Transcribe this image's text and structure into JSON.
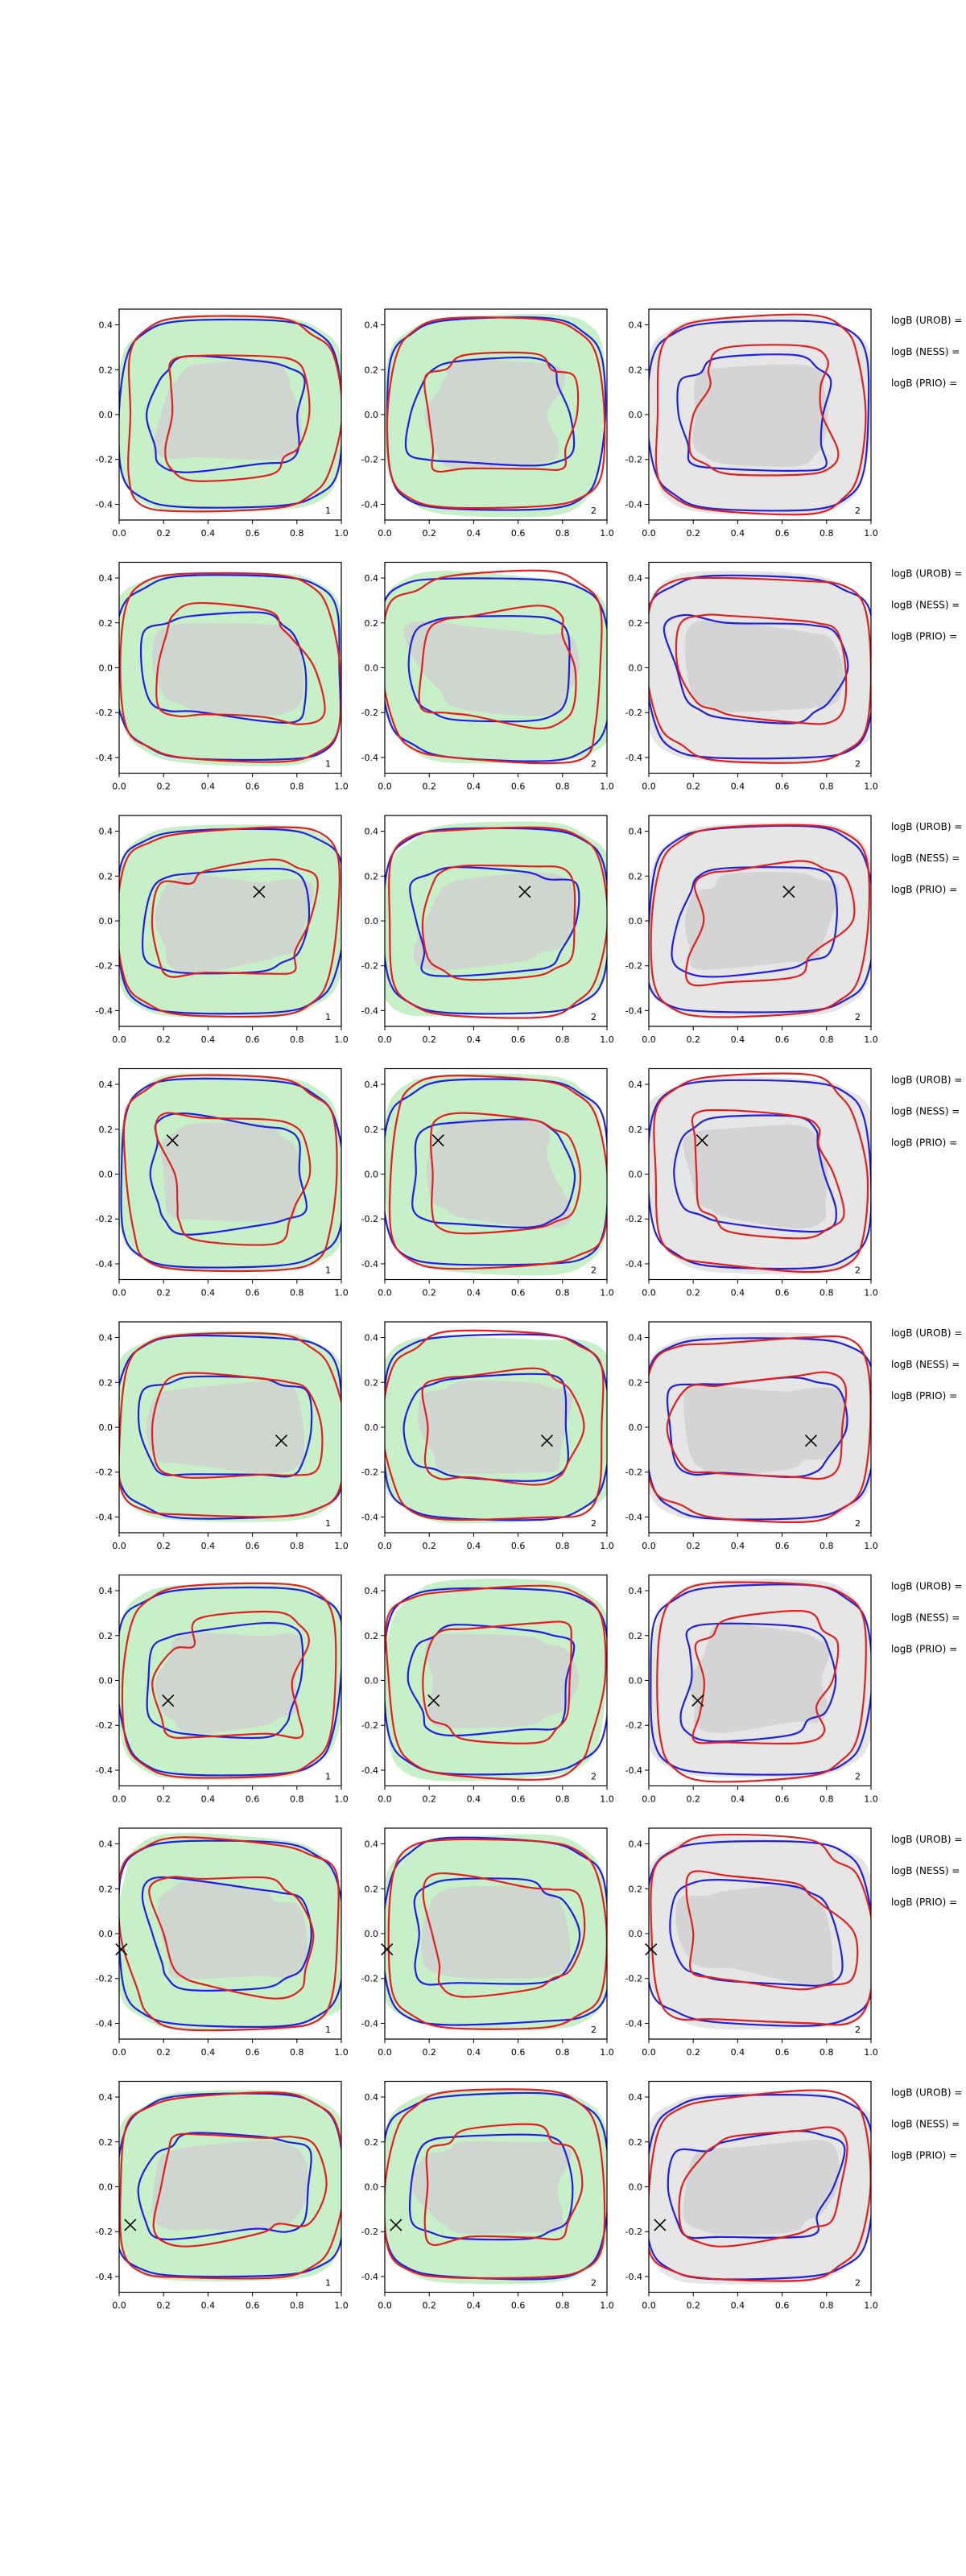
{
  "figure": {
    "rows": 8,
    "columns": 3
  },
  "chart_data": {
    "type": "contour",
    "xlim": [
      0.0,
      1.0
    ],
    "ylim": [
      -0.47,
      0.47
    ],
    "x_ticks": [
      "0.0",
      "0.2",
      "0.4",
      "0.6",
      "0.8",
      "1.0"
    ],
    "y_ticks": [
      "-0.4",
      "-0.2",
      "0.0",
      "0.2",
      "0.4"
    ],
    "y_tick_values": [
      -0.4,
      -0.2,
      0.0,
      0.2,
      0.4
    ],
    "x_tick_values": [
      0.0,
      0.2,
      0.4,
      0.6,
      0.8,
      1.0
    ],
    "series_colors": {
      "blue_contours": "#1f1fe0",
      "red_contours": "#e01f1f",
      "green_fill": "#c8f0c8",
      "gray_fill": "#e6e6e6",
      "dark_gray_fill": "#d0d0d0",
      "marker": "#000000"
    },
    "column_panel_numbers": [
      "1",
      "2",
      "2"
    ],
    "column_backgrounds": [
      "green",
      "green",
      "gray"
    ],
    "logb_labels": [
      "logB (UROB) =",
      "logB (NESS) =",
      "logB (PRIO) ="
    ],
    "rows": [
      {
        "row": 1,
        "marker": null
      },
      {
        "row": 2,
        "marker": null
      },
      {
        "row": 3,
        "marker": {
          "x": 0.63,
          "y": 0.13
        }
      },
      {
        "row": 4,
        "marker": {
          "x": 0.24,
          "y": 0.15
        }
      },
      {
        "row": 5,
        "marker": {
          "x": 0.73,
          "y": -0.06
        }
      },
      {
        "row": 6,
        "marker": {
          "x": 0.22,
          "y": -0.09
        }
      },
      {
        "row": 7,
        "marker": {
          "x": 0.01,
          "y": -0.07
        }
      },
      {
        "row": 8,
        "marker": {
          "x": 0.05,
          "y": -0.17
        }
      }
    ]
  }
}
